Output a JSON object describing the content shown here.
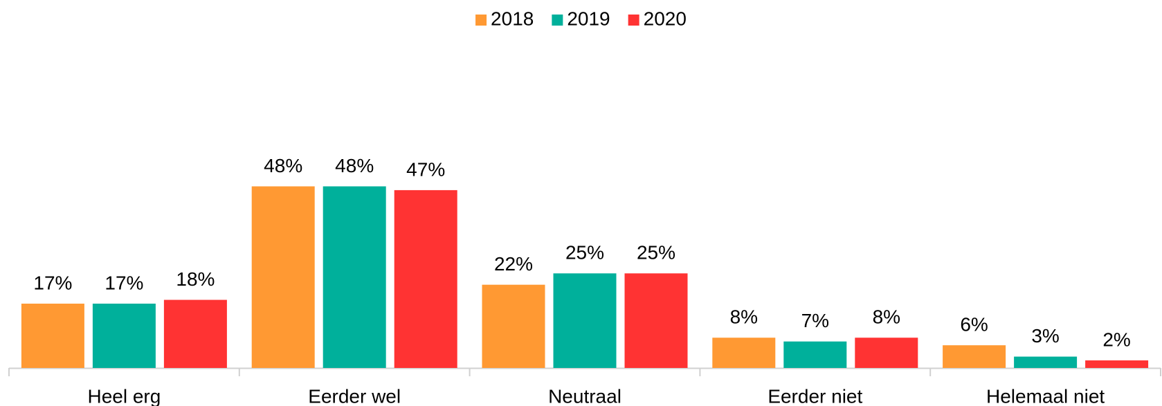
{
  "chart_data": {
    "type": "bar",
    "categories": [
      "Heel erg",
      "Eerder wel",
      "Neutraal",
      "Eerder niet",
      "Helemaal niet"
    ],
    "series": [
      {
        "name": "2018",
        "color": "#ff9933",
        "values": [
          17,
          48,
          22,
          8,
          6
        ],
        "value_labels": [
          "17%",
          "48%",
          "22%",
          "8%",
          "6%"
        ]
      },
      {
        "name": "2019",
        "color": "#00b09b",
        "values": [
          17,
          48,
          25,
          7,
          3
        ],
        "value_labels": [
          "17%",
          "48%",
          "25%",
          "7%",
          "3%"
        ]
      },
      {
        "name": "2020",
        "color": "#ff3333",
        "values": [
          18,
          47,
          25,
          8,
          2
        ],
        "value_labels": [
          "18%",
          "47%",
          "25%",
          "8%",
          "2%"
        ]
      }
    ],
    "legend": "top"
  }
}
